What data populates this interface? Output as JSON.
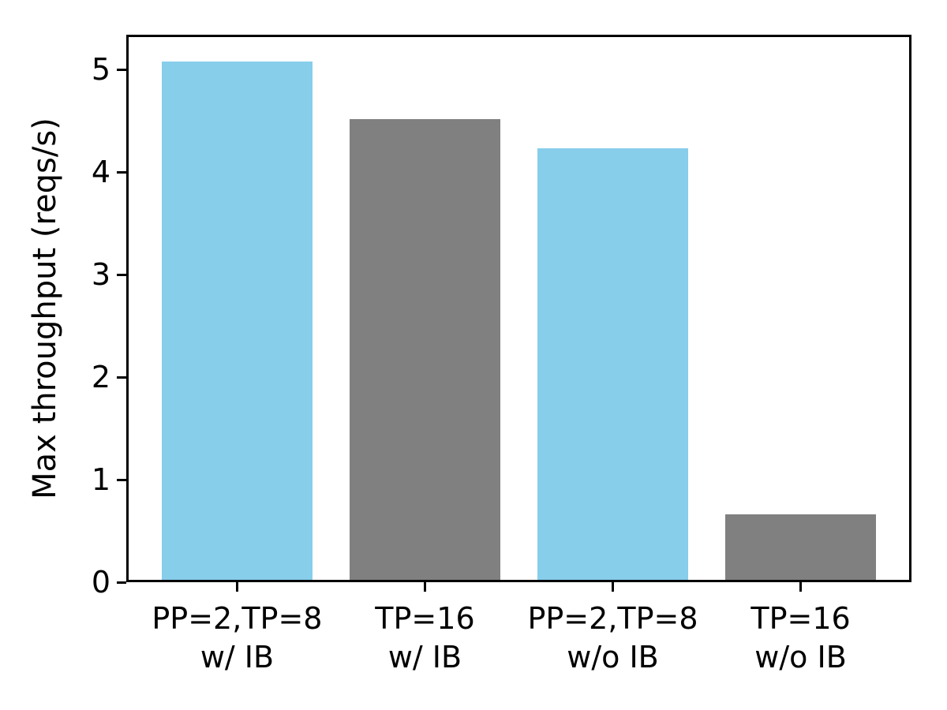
{
  "figure": {
    "background": "#ffffff"
  },
  "chart_data": {
    "type": "bar",
    "title": "",
    "xlabel": "",
    "ylabel": "Max throughput (reqs/s)",
    "categories": [
      "PP=2,TP=8 w/ IB",
      "TP=16 w/ IB",
      "PP=2,TP=8 w/o IB",
      "TP=16 w/o IB"
    ],
    "category_lines": [
      [
        "PP=2,TP=8",
        "w/ IB"
      ],
      [
        "TP=16",
        "w/ IB"
      ],
      [
        "PP=2,TP=8",
        "w/o IB"
      ],
      [
        "TP=16",
        "w/o IB"
      ]
    ],
    "values": [
      5.08,
      4.52,
      4.23,
      0.66
    ],
    "bar_colors": [
      "#87CEEB",
      "#808080",
      "#87CEEB",
      "#808080"
    ],
    "yticks": [
      0,
      1,
      2,
      3,
      4,
      5
    ],
    "ytick_labels": [
      "0",
      "1",
      "2",
      "3",
      "4",
      "5"
    ],
    "ylim": [
      0,
      5.34
    ],
    "xlim": [
      -0.59,
      3.59
    ],
    "bar_width_fraction": 0.8,
    "grid": false,
    "legend": null,
    "spine_color": "#000000",
    "text_color": "#000000"
  }
}
